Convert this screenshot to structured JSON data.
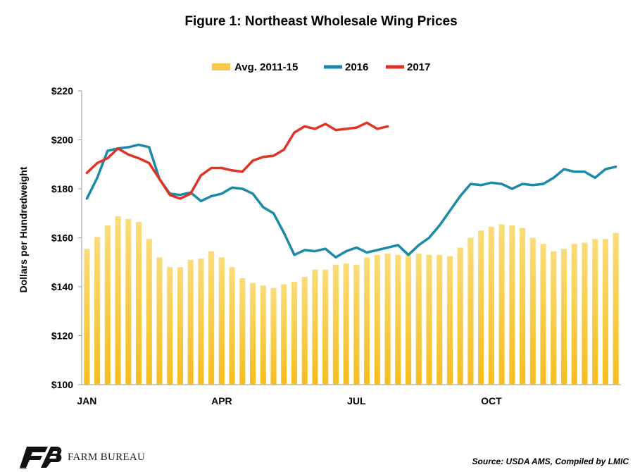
{
  "chart_data": {
    "type": "bar+line",
    "title": "Figure 1: Northeast Wholesale Wing Prices",
    "ylabel": "Dollars per Hundredweight",
    "xlabel": "",
    "ylim": [
      100,
      220
    ],
    "yticks": [
      "$220",
      "$200",
      "$180",
      "$160",
      "$140",
      "$120",
      "$100"
    ],
    "ytick_values": [
      220,
      200,
      180,
      160,
      140,
      120,
      100
    ],
    "xticks": [
      {
        "label": "JAN",
        "week": 1
      },
      {
        "label": "APR",
        "week": 14
      },
      {
        "label": "JUL",
        "week": 27
      },
      {
        "label": "OCT",
        "week": 40
      }
    ],
    "weeks": 52,
    "legend_position": "top-center",
    "grid": false,
    "series": [
      {
        "name": "Avg. 2011-15",
        "kind": "bar",
        "color": "#f7c948",
        "values": [
          155.5,
          160.3,
          165,
          168.8,
          167.7,
          166.5,
          159.5,
          152,
          148,
          148,
          151,
          151.5,
          154.5,
          152,
          148,
          143.5,
          141.5,
          140.5,
          139.5,
          141,
          142,
          144,
          147,
          147,
          149,
          149.5,
          149,
          152,
          153,
          153.5,
          153,
          153,
          153.5,
          153,
          153,
          152.5,
          156,
          160,
          163,
          164.5,
          165.5,
          165,
          164,
          160,
          157.5,
          154.5,
          155.5,
          157.5,
          158,
          159.5,
          159.5,
          162
        ]
      },
      {
        "name": "2016",
        "kind": "line",
        "color": "#1a8aa8",
        "values": [
          176,
          184.5,
          195.5,
          196.5,
          197,
          198,
          197,
          184,
          178,
          177.5,
          178.5,
          175,
          177,
          178,
          180.5,
          180,
          178,
          172.5,
          170,
          162,
          153,
          155,
          154.5,
          155.5,
          152,
          154.5,
          156,
          154,
          155,
          156,
          157,
          153,
          157,
          160,
          165,
          171,
          177,
          182,
          181.5,
          182.5,
          182,
          180,
          182,
          181.5,
          182,
          184.5,
          188,
          187,
          187,
          184.5,
          188,
          189
        ]
      },
      {
        "name": "2017",
        "kind": "line",
        "color": "#e03326",
        "values": [
          186.5,
          190.5,
          192.5,
          196.5,
          194,
          192.5,
          190.5,
          184,
          177.5,
          176,
          178,
          185.5,
          188.5,
          188.5,
          187.5,
          187,
          191.5,
          193,
          193.5,
          196,
          203,
          205.5,
          204.5,
          206.5,
          204,
          204.5,
          205,
          207,
          204.5,
          205.5
        ]
      }
    ]
  },
  "footer": {
    "source": "Source: USDA AMS, Compiled by LMIC",
    "logo_text": "FARM BUREAU"
  }
}
